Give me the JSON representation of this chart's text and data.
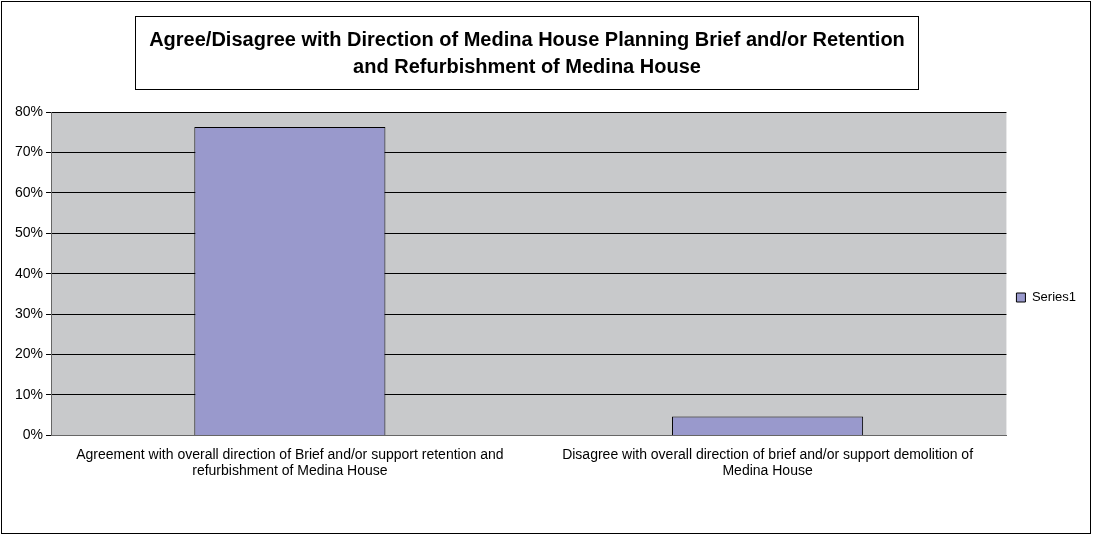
{
  "chart_data": {
    "type": "bar",
    "title": "Agree/Disagree with Direction of Medina House Planning Brief and/or Retention and Refurbishment of Medina House",
    "categories": [
      "Agreement with overall direction of Brief and/or support retention and refurbishment of Medina House",
      "Disagree with overall direction of brief and/or support demolition of Medina House"
    ],
    "series": [
      {
        "name": "Series1",
        "color": "#9999cc",
        "values": [
          76.3,
          4.7
        ]
      }
    ],
    "ylim": [
      0,
      80
    ],
    "yticks": [
      {
        "value": 0,
        "label": "0%"
      },
      {
        "value": 10,
        "label": "10%"
      },
      {
        "value": 20,
        "label": "20%"
      },
      {
        "value": 30,
        "label": "30%"
      },
      {
        "value": 40,
        "label": "40%"
      },
      {
        "value": 50,
        "label": "50%"
      },
      {
        "value": 60,
        "label": "60%"
      },
      {
        "value": 70,
        "label": "70%"
      },
      {
        "value": 80,
        "label": "80%"
      }
    ],
    "grid": "y",
    "legend": "right"
  }
}
